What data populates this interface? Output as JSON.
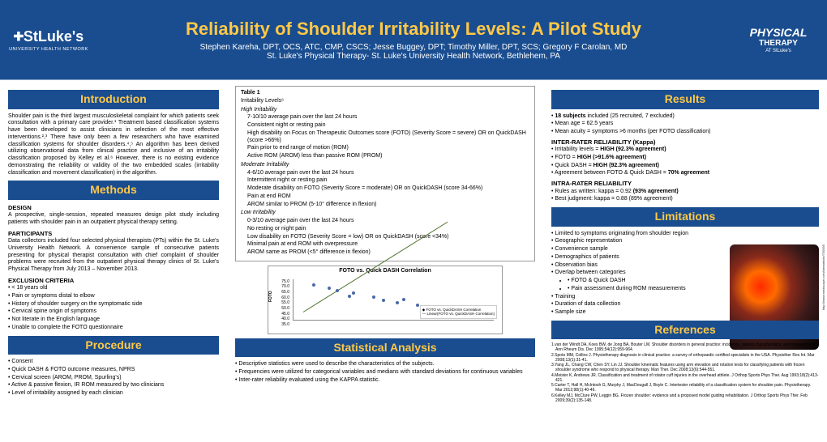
{
  "header": {
    "logo_left_brand": "StLuke's",
    "logo_left_sub": "UNIVERSITY HEALTH NETWORK",
    "title": "Reliability of Shoulder Irritability Levels: A Pilot Study",
    "authors": "Stephen Kareha, DPT, OCS, ATC, CMP, CSCS; Jesse Buggey, DPT; Timothy Miller, DPT, SCS; Gregory F Carolan, MD",
    "affiliation": "St. Luke's Physical Therapy- St. Luke's University Health Network, Bethlehem, PA",
    "logo_right_l1": "PHYSICAL",
    "logo_right_l2": "THERAPY",
    "logo_right_l3": "AT StLuke's"
  },
  "intro": {
    "head": "Introduction",
    "body": "Shoulder pain is the third largest musculoskeletal complaint for which patients seek consultation with a primary care provider.¹ Treatment based classification systems have been developed to assist clinicians in selection of the most effective interventions.²,³ There have only been a few researchers who have examined classification systems for shoulder disorders.⁴,⁵ An algorithm has been derived utilizing observational data from clinical practice and inclusive of an irritability classification proposed by Kelley et al.⁶ However, there is no existing evidence demonstrating the reliability or validity of the two embedded scales (irritability classification and movement classification) in the algorithm."
  },
  "methods": {
    "head": "Methods",
    "design_h": "DESIGN",
    "design": "A prospective, single-session, repeated measures design pilot study including patients with shoulder pain in an outpatient physical therapy setting.",
    "participants_h": "PARTICIPANTS",
    "participants": "Data collectors included four selected physical therapists (PTs) within the St. Luke's University Health Network. A convenience sample of consecutive patients presenting for physical therapist consultation with chief complaint of shoulder problems were recruited from the outpatient physical therapy clinics of St. Luke's Physical Therapy from July 2013 – November 2013.",
    "exclusion_h": "EXCLUSION CRITERIA",
    "exclusion": [
      "< 18 years old",
      "Pain or symptoms distal to elbow",
      "History of shoulder surgery on the symptomatic side",
      "Cervical spine origin of symptoms",
      "Not literate in the English language",
      "Unable to complete the FOTO questionnaire"
    ]
  },
  "procedure": {
    "head": "Procedure",
    "items": [
      "Consent",
      "Quick DASH & FOTO outcome measures, NPRS",
      "Cervical screen (AROM, PROM, Spurling's)",
      "Active & passive flexion, IR ROM measured by two clinicians",
      "Level of irritability assigned by each clinician"
    ]
  },
  "table": {
    "title": "Table 1",
    "subtitle": "Irritability Levels⁶",
    "high": {
      "name": "High Irritability",
      "items": [
        "7-10/10 average pain over the last 24 hours",
        "Consistent night or resting pain",
        "High disability on Focus on Therapeutic Outcomes score (FOTO) (Severity Score = severe) OR on QuickDASH (score >66%)",
        "Pain prior to end range of motion (ROM)",
        "Active ROM (AROM) less than passive ROM (PROM)"
      ]
    },
    "moderate": {
      "name": "Moderate Irritability",
      "items": [
        "4-6/10 average pain over the last 24 hours",
        "Intermittent night or resting pain",
        "Moderate disability on FOTO (Severity Score = moderate) OR on QuickDASH (score 34-66%)",
        "Pain at end ROM",
        "AROM similar to PROM (5-10° difference in flexion)"
      ]
    },
    "low": {
      "name": "Low Irritability",
      "items": [
        "0-3/10 average pain over the last 24 hours",
        "No resting or night pain",
        "Low disability on FOTO (Severity Score = low) OR on QuickDASH (score <34%)",
        "Minimal pain at end ROM with overpressure",
        "AROM same as PROM (<5° difference in flexion)"
      ]
    }
  },
  "chart": {
    "title": "FOTO vs. Quick DASH Correlation",
    "ylabel": "FOTO",
    "y_ticks": [
      "75.0",
      "70.0",
      "65.0",
      "60.0",
      "55.0",
      "50.0",
      "45.0",
      "40.0",
      "35.0"
    ],
    "legend1": "FOTO vs. QuickDASH Correlation",
    "legend2": "Linear(FOTO vs. QuickDASH Correlation)",
    "points": [
      {
        "x": 10,
        "y": 85,
        "c": "#4a6aa5"
      },
      {
        "x": 18,
        "y": 78,
        "c": "#4a6aa5"
      },
      {
        "x": 22,
        "y": 72,
        "c": "#4a6aa5"
      },
      {
        "x": 30,
        "y": 65,
        "c": "#4a6aa5"
      },
      {
        "x": 28,
        "y": 58,
        "c": "#4a6aa5"
      },
      {
        "x": 40,
        "y": 55,
        "c": "#4a6aa5"
      },
      {
        "x": 45,
        "y": 48,
        "c": "#4a6aa5"
      },
      {
        "x": 52,
        "y": 42,
        "c": "#4a6aa5"
      },
      {
        "x": 55,
        "y": 50,
        "c": "#4a6aa5"
      },
      {
        "x": 62,
        "y": 35,
        "c": "#4a6aa5"
      },
      {
        "x": 70,
        "y": 30,
        "c": "#4a6aa5"
      },
      {
        "x": 75,
        "y": 25,
        "c": "#4a6aa5"
      },
      {
        "x": 82,
        "y": 22,
        "c": "#4a6aa5"
      },
      {
        "x": 88,
        "y": 15,
        "c": "#4a6aa5"
      }
    ]
  },
  "stats": {
    "head": "Statistical Analysis",
    "items": [
      "Descriptive statistics were used to describe the characteristics of the subjects.",
      "Frequencies were utilized for categorical variables and medians with standard deviations for continuous variables",
      "Inter-rater reliability evaluated using the KAPPA statistic."
    ]
  },
  "results": {
    "head": "Results",
    "top": [
      "18 subjects included (25 recruited, 7 excluded)",
      "Mean age = 62.5 years",
      "Mean acuity = symptoms >6 months (per FOTO classification)"
    ],
    "inter_h": "INTER-RATER RELIABILITY (Kappa)",
    "inter": [
      "Irritability levels  =  HIGH (92.3% agreement)",
      "FOTO =  HIGH (>91.6% agreement)",
      "Quick DASH =  HIGH (92.3% agreement)",
      "Agreement between FOTO & Quick DASH = 70% agreement"
    ],
    "intra_h": "INTRA-RATER RELIABILITY",
    "intra": [
      "Rules as written:   kappa = 0.92 (93% agreement)",
      "Best judgment:   kappa = 0.88  (89% agreement)"
    ]
  },
  "limitations": {
    "head": "Limitations",
    "items": [
      "Limited to symptoms originating from shoulder region",
      "Geographic representation",
      "Convenience sample",
      "Demographics of patients",
      "Observation bias",
      "Overlap between categories"
    ],
    "sub1": [
      "FOTO & Quick DASH",
      "Pain assessment during ROM measurements"
    ],
    "items2": [
      "Training",
      "Duration of data collection",
      "Sample size"
    ]
  },
  "refs": {
    "head": "References",
    "items": [
      "1.van der Windt DA, Koes BW, de Jong BA, Bouter LM. Shoulder disorders in general practice: incidence, patient characteristics, and management. Ann Rheum Dis. Dec 1995;54(12):959-964.",
      "2.Spoto MM, Collins J. Physiotherapy diagnosis in clinical practice: a survey of orthopaedic certified specialists in the USA. Physiother Res Int. Mar 2008;13(1):31-41.",
      "3.Yang JL, Chang CW, Chen SY, Lin JJ. Shoulder kinematic features using arm elevation and rotation tests for classifying patients with frozen shoulder syndrome who respond to physical therapy. Man Ther. Dec 2008;13(6):544-551.",
      "4.Meister K, Andrews JR. Classification and treatment of rotator cuff injuries in the overhead athlete. J Orthop Sports Phys Ther. Aug 1993;18(2):413-421.",
      "5.Carter T, Hall H, McIntosh G, Murphy J, MacDougall J, Boyle C. Intertester reliability of a classification system for shoulder pain. Physiotherapy. Mar 2012;98(1):40-46.",
      "6.Kelley MJ, McClure PW, Leggin BG. Frozen shoulder: evidence and a proposed model guiding rehabilitation. J Orthop Sports Phys Ther. Feb 2009;39(2):135-148."
    ]
  },
  "img_credit": "http://www.medscape.com/viewarticle/730095"
}
